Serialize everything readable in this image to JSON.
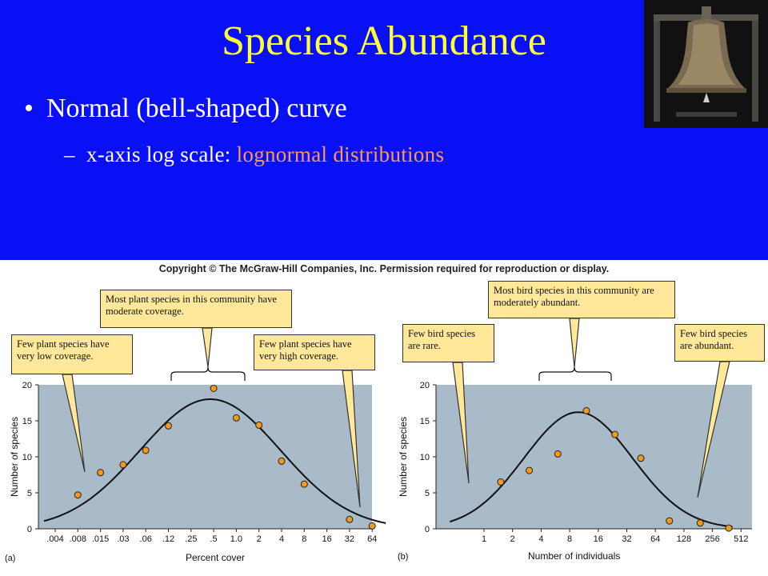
{
  "slide": {
    "title": "Species Abundance",
    "bullet": "•",
    "bullet_text": "Normal (bell-shaped) curve",
    "sub_dash": "–",
    "sub_prefix": "x-axis log scale: ",
    "sub_highlight": "lognormal distributions",
    "photo_icon": "bell-photo"
  },
  "figure": {
    "copyright": "Copyright © The McGraw-Hill Companies, Inc. Permission required for reproduction or display.",
    "panel_a": {
      "callout_left": "Few plant species have very low coverage.",
      "callout_top": "Most plant species in this community have moderate coverage.",
      "callout_right": "Few plant species have very high coverage."
    },
    "panel_b": {
      "callout_left": "Few bird species are rare.",
      "callout_top": "Most bird species in this community are moderately abundant.",
      "callout_right": "Few bird species are abundant."
    }
  },
  "colors": {
    "background": "#0a10f5",
    "title": "#ffff33",
    "highlight": "#ff9a4d",
    "plot_bg": "#a9bac9",
    "callout": "#ffe89a",
    "point": "#f39a1a"
  },
  "chart_data": [
    {
      "type": "scatter",
      "panel_label": "(a)",
      "xlabel": "Percent cover",
      "ylabel": "Number of species",
      "x_scale": "log",
      "x_tick_labels": [
        ".004",
        ".008",
        ".015",
        ".03",
        ".06",
        ".12",
        ".25",
        ".5",
        "1.0",
        "2",
        "4",
        "8",
        "16",
        "32",
        "64"
      ],
      "ylim": [
        0,
        20
      ],
      "y_ticks": [
        0,
        5,
        10,
        15,
        20
      ],
      "points": [
        {
          "x": ".008",
          "y": 4.7
        },
        {
          "x": ".015",
          "y": 7.8
        },
        {
          "x": ".03",
          "y": 8.9
        },
        {
          "x": ".06",
          "y": 10.9
        },
        {
          "x": ".12",
          "y": 14.3
        },
        {
          "x": ".5",
          "y": 19.5
        },
        {
          "x": "1.0",
          "y": 15.4
        },
        {
          "x": "2",
          "y": 14.4
        },
        {
          "x": "4",
          "y": 9.4
        },
        {
          "x": "8",
          "y": 6.2
        },
        {
          "x": "32",
          "y": 1.3
        },
        {
          "x": "64",
          "y": 0.4
        }
      ],
      "fitted_curve": "lognormal",
      "grid": false
    },
    {
      "type": "scatter",
      "panel_label": "(b)",
      "xlabel": "Number of individuals",
      "ylabel": "Number of species",
      "x_scale": "log",
      "x_tick_labels": [
        "1",
        "2",
        "4",
        "8",
        "16",
        "32",
        "64",
        "128",
        "256",
        "512"
      ],
      "ylim": [
        0,
        20
      ],
      "y_ticks": [
        0,
        5,
        10,
        15,
        20
      ],
      "points": [
        {
          "x": 1.5,
          "y": 6.5
        },
        {
          "x": 3,
          "y": 8.1
        },
        {
          "x": 6,
          "y": 10.4
        },
        {
          "x": 12,
          "y": 16.4
        },
        {
          "x": 24,
          "y": 13.1
        },
        {
          "x": 45,
          "y": 9.8
        },
        {
          "x": 90,
          "y": 1.1
        },
        {
          "x": 190,
          "y": 0.8
        },
        {
          "x": 380,
          "y": 0.1
        }
      ],
      "fitted_curve": "lognormal",
      "grid": false
    }
  ]
}
